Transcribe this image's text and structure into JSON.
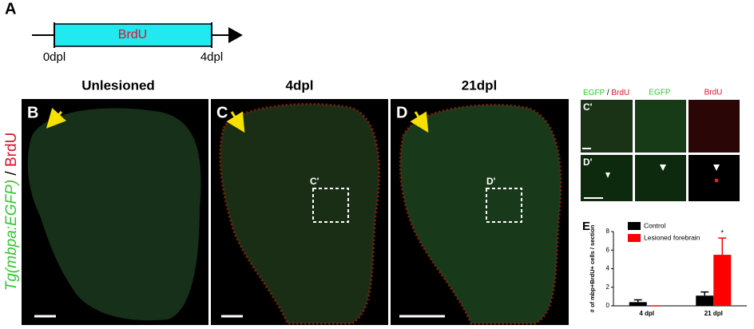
{
  "panel_a": {
    "letter": "A",
    "bar_label": "BrdU",
    "start": "0dpl",
    "end": "4dpl"
  },
  "side_label": {
    "marker": "Tg(mbpa:EGFP)",
    "separator": "/",
    "stain": "BrdU"
  },
  "columns": [
    {
      "header": "Unlesioned",
      "letter": "B"
    },
    {
      "header": "4dpl",
      "letter": "C",
      "box_label": "C'"
    },
    {
      "header": "21dpl",
      "letter": "D",
      "box_label": "D'"
    }
  ],
  "insets": {
    "merged_header": [
      "EGFP",
      "/",
      "BrdU"
    ],
    "green_header": "EGFP",
    "red_header": "BrdU",
    "rows": [
      "C'",
      "D'"
    ]
  },
  "chart_data": {
    "type": "bar",
    "letter": "E",
    "y_label": "# of mbp+BrdU+ cells / section",
    "categories": [
      "4 dpl",
      "21 dpl"
    ],
    "series": [
      {
        "name": "Control",
        "color": "#000000",
        "values": [
          0.4,
          1.1
        ],
        "errors": [
          0.25,
          0.4
        ]
      },
      {
        "name": "Lesioned forebrain",
        "color": "#ff0000",
        "values": [
          0,
          5.5
        ],
        "errors": [
          0,
          1.8
        ]
      }
    ],
    "ylim": [
      0,
      8
    ],
    "yticks": [
      0,
      2,
      4,
      6,
      8
    ],
    "annotation": "*"
  }
}
